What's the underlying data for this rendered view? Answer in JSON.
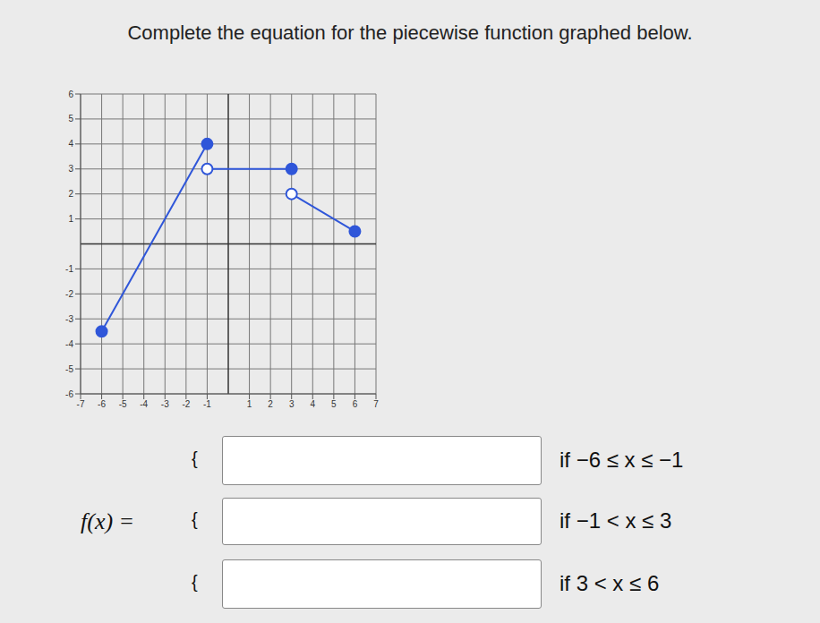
{
  "title": "Complete the equation for the piecewise function graphed below.",
  "chart_data": {
    "type": "line",
    "xlim": [
      -7,
      7
    ],
    "ylim": [
      -6,
      6
    ],
    "xticks": [
      -7,
      -6,
      -5,
      -4,
      -3,
      -2,
      -1,
      1,
      2,
      3,
      4,
      5,
      6,
      7
    ],
    "yticks": [
      -6,
      -5,
      -4,
      -3,
      -2,
      -1,
      1,
      2,
      3,
      4,
      5,
      6
    ],
    "grid": true,
    "color": "#2f56d9",
    "segments": [
      {
        "x": [
          -6,
          -1
        ],
        "values": [
          -3.5,
          4
        ],
        "closed": [
          true,
          true
        ]
      },
      {
        "x": [
          -1,
          3
        ],
        "values": [
          3,
          3
        ],
        "closed": [
          false,
          true
        ]
      },
      {
        "x": [
          3,
          6
        ],
        "values": [
          2,
          0.5
        ],
        "closed": [
          false,
          true
        ]
      }
    ]
  },
  "equation": {
    "function_label": "f(x) =",
    "brace": "{",
    "conditions": [
      "if −6 ≤ x ≤ −1",
      "if −1 < x ≤ 3",
      "if 3 < x ≤ 6"
    ]
  }
}
